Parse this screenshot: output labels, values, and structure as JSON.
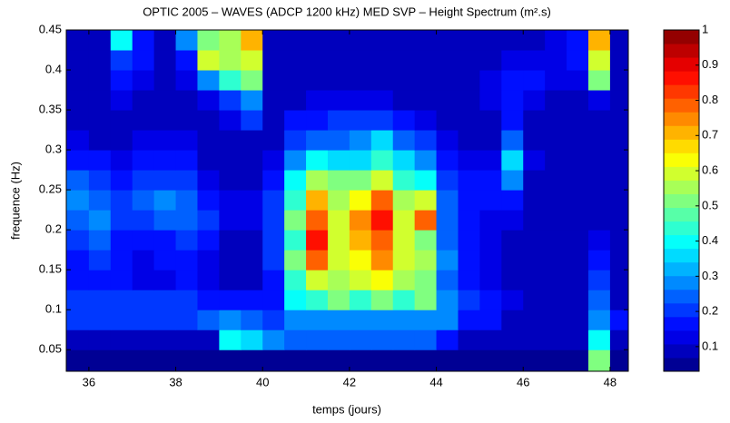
{
  "chart_data": {
    "type": "heatmap",
    "title": "OPTIC 2005 – WAVES (ADCP 1200 kHz) MED SVP – Height Spectrum (m².s)",
    "x_label": "temps (jours)",
    "y_label": "frequence (Hz)",
    "colormap": "jet",
    "xlim": [
      35.48,
      48.42
    ],
    "ylim": [
      0.023,
      0.45
    ],
    "xticks": [
      36,
      38,
      40,
      42,
      44,
      46,
      48
    ],
    "yticks": [
      0.05,
      0.1,
      0.15,
      0.2,
      0.25,
      0.3,
      0.35,
      0.4,
      0.45
    ],
    "clim": [
      0.03,
      1
    ],
    "cticks": [
      0.1,
      0.2,
      0.3,
      0.4,
      0.5,
      0.6,
      0.7,
      0.8,
      0.9,
      1
    ],
    "x_edges": [
      35.48,
      36,
      36.5,
      37,
      37.5,
      38,
      38.5,
      39,
      39.5,
      40,
      40.5,
      41,
      41.5,
      42,
      42.5,
      43,
      43.5,
      44,
      44.5,
      45,
      45.5,
      46,
      46.5,
      47,
      47.5,
      48,
      48.42
    ],
    "y_edges": [
      0.023,
      0.05,
      0.075,
      0.1,
      0.125,
      0.15,
      0.175,
      0.2,
      0.225,
      0.25,
      0.275,
      0.3,
      0.325,
      0.35,
      0.375,
      0.4,
      0.425,
      0.45
    ],
    "z": [
      [
        0.03,
        0.03,
        0.03,
        0.03,
        0.03,
        0.03,
        0.03,
        0.03,
        0.03,
        0.03,
        0.03,
        0.03,
        0.03,
        0.03,
        0.03,
        0.03,
        0.03,
        0.03,
        0.03,
        0.03,
        0.03,
        0.03,
        0.03,
        0.03,
        0.5,
        0.03
      ],
      [
        0.08,
        0.08,
        0.08,
        0.08,
        0.08,
        0.08,
        0.08,
        0.4,
        0.35,
        0.3,
        0.25,
        0.25,
        0.25,
        0.25,
        0.25,
        0.25,
        0.25,
        0.15,
        0.08,
        0.08,
        0.08,
        0.08,
        0.08,
        0.08,
        0.4,
        0.08
      ],
      [
        0.2,
        0.2,
        0.2,
        0.2,
        0.2,
        0.2,
        0.25,
        0.3,
        0.25,
        0.2,
        0.3,
        0.3,
        0.3,
        0.3,
        0.3,
        0.3,
        0.3,
        0.3,
        0.15,
        0.15,
        0.1,
        0.1,
        0.1,
        0.1,
        0.3,
        0.15
      ],
      [
        0.2,
        0.2,
        0.2,
        0.2,
        0.2,
        0.2,
        0.15,
        0.15,
        0.15,
        0.15,
        0.4,
        0.45,
        0.5,
        0.45,
        0.5,
        0.45,
        0.5,
        0.3,
        0.2,
        0.15,
        0.12,
        0.1,
        0.1,
        0.1,
        0.25,
        0.1
      ],
      [
        0.15,
        0.18,
        0.15,
        0.12,
        0.12,
        0.15,
        0.12,
        0.1,
        0.1,
        0.15,
        0.45,
        0.6,
        0.55,
        0.6,
        0.65,
        0.55,
        0.5,
        0.25,
        0.15,
        0.12,
        0.1,
        0.08,
        0.08,
        0.08,
        0.2,
        0.08
      ],
      [
        0.18,
        0.2,
        0.15,
        0.12,
        0.15,
        0.15,
        0.12,
        0.1,
        0.1,
        0.2,
        0.5,
        0.8,
        0.6,
        0.65,
        0.75,
        0.6,
        0.55,
        0.3,
        0.15,
        0.12,
        0.1,
        0.08,
        0.08,
        0.08,
        0.15,
        0.08
      ],
      [
        0.2,
        0.25,
        0.18,
        0.15,
        0.18,
        0.2,
        0.15,
        0.1,
        0.1,
        0.2,
        0.45,
        0.85,
        0.6,
        0.7,
        0.8,
        0.6,
        0.5,
        0.25,
        0.15,
        0.12,
        0.1,
        0.08,
        0.08,
        0.08,
        0.12,
        0.08
      ],
      [
        0.25,
        0.3,
        0.2,
        0.2,
        0.25,
        0.25,
        0.2,
        0.12,
        0.12,
        0.2,
        0.5,
        0.8,
        0.6,
        0.75,
        0.85,
        0.6,
        0.8,
        0.25,
        0.15,
        0.12,
        0.12,
        0.08,
        0.08,
        0.08,
        0.1,
        0.08
      ],
      [
        0.3,
        0.25,
        0.2,
        0.25,
        0.3,
        0.25,
        0.15,
        0.12,
        0.12,
        0.2,
        0.45,
        0.7,
        0.55,
        0.65,
        0.8,
        0.55,
        0.6,
        0.25,
        0.15,
        0.15,
        0.15,
        0.1,
        0.08,
        0.08,
        0.1,
        0.08
      ],
      [
        0.25,
        0.2,
        0.18,
        0.2,
        0.2,
        0.2,
        0.12,
        0.1,
        0.1,
        0.15,
        0.4,
        0.55,
        0.5,
        0.5,
        0.6,
        0.45,
        0.4,
        0.2,
        0.15,
        0.15,
        0.3,
        0.1,
        0.08,
        0.08,
        0.1,
        0.08
      ],
      [
        0.15,
        0.15,
        0.12,
        0.15,
        0.15,
        0.15,
        0.1,
        0.1,
        0.1,
        0.12,
        0.3,
        0.4,
        0.35,
        0.35,
        0.45,
        0.35,
        0.3,
        0.15,
        0.12,
        0.12,
        0.35,
        0.12,
        0.08,
        0.08,
        0.1,
        0.08
      ],
      [
        0.12,
        0.1,
        0.1,
        0.12,
        0.12,
        0.12,
        0.1,
        0.1,
        0.1,
        0.1,
        0.2,
        0.25,
        0.25,
        0.3,
        0.35,
        0.25,
        0.2,
        0.12,
        0.1,
        0.1,
        0.25,
        0.1,
        0.08,
        0.08,
        0.08,
        0.08
      ],
      [
        0.1,
        0.1,
        0.1,
        0.1,
        0.1,
        0.1,
        0.1,
        0.12,
        0.2,
        0.1,
        0.15,
        0.15,
        0.2,
        0.2,
        0.2,
        0.15,
        0.12,
        0.1,
        0.1,
        0.1,
        0.15,
        0.1,
        0.1,
        0.1,
        0.1,
        0.08
      ],
      [
        0.1,
        0.1,
        0.12,
        0.1,
        0.1,
        0.1,
        0.12,
        0.2,
        0.3,
        0.1,
        0.1,
        0.12,
        0.12,
        0.12,
        0.12,
        0.1,
        0.1,
        0.1,
        0.1,
        0.12,
        0.15,
        0.12,
        0.1,
        0.1,
        0.12,
        0.08
      ],
      [
        0.1,
        0.1,
        0.15,
        0.12,
        0.1,
        0.12,
        0.3,
        0.45,
        0.5,
        0.1,
        0.1,
        0.1,
        0.1,
        0.1,
        0.1,
        0.1,
        0.1,
        0.1,
        0.1,
        0.12,
        0.15,
        0.15,
        0.12,
        0.12,
        0.5,
        0.1
      ],
      [
        0.1,
        0.1,
        0.2,
        0.15,
        0.1,
        0.15,
        0.6,
        0.55,
        0.6,
        0.1,
        0.08,
        0.08,
        0.08,
        0.08,
        0.08,
        0.1,
        0.1,
        0.1,
        0.1,
        0.1,
        0.12,
        0.12,
        0.12,
        0.15,
        0.6,
        0.1
      ],
      [
        0.1,
        0.1,
        0.4,
        0.15,
        0.1,
        0.3,
        0.5,
        0.55,
        0.7,
        0.1,
        0.08,
        0.08,
        0.08,
        0.08,
        0.08,
        0.08,
        0.08,
        0.1,
        0.1,
        0.1,
        0.1,
        0.1,
        0.12,
        0.15,
        0.7,
        0.1
      ]
    ]
  }
}
